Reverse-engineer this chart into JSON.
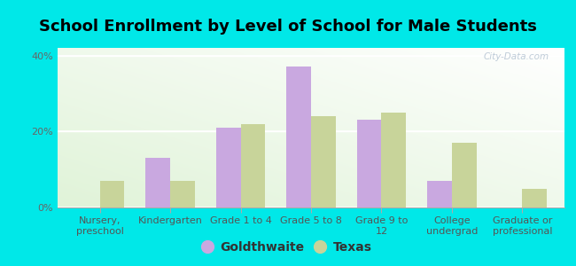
{
  "title": "School Enrollment by Level of School for Male Students",
  "categories": [
    "Nursery,\npreschool",
    "Kindergarten",
    "Grade 1 to 4",
    "Grade 5 to 8",
    "Grade 9 to\n12",
    "College\nundergrad",
    "Graduate or\nprofessional"
  ],
  "goldthwaite": [
    0,
    13,
    21,
    37,
    23,
    7,
    0
  ],
  "texas": [
    7,
    7,
    22,
    24,
    25,
    17,
    5
  ],
  "goldthwaite_color": "#c9a8e0",
  "texas_color": "#c8d49a",
  "background_color": "#00e8e8",
  "plot_bg_top": "#f4f9ec",
  "plot_bg_bottom": "#e8f5e0",
  "ylim": [
    0,
    42
  ],
  "yticks": [
    0,
    20,
    40
  ],
  "ytick_labels": [
    "0%",
    "20%",
    "40%"
  ],
  "bar_width": 0.35,
  "title_fontsize": 13,
  "tick_fontsize": 8,
  "legend_fontsize": 10,
  "watermark_text": "City-Data.com"
}
